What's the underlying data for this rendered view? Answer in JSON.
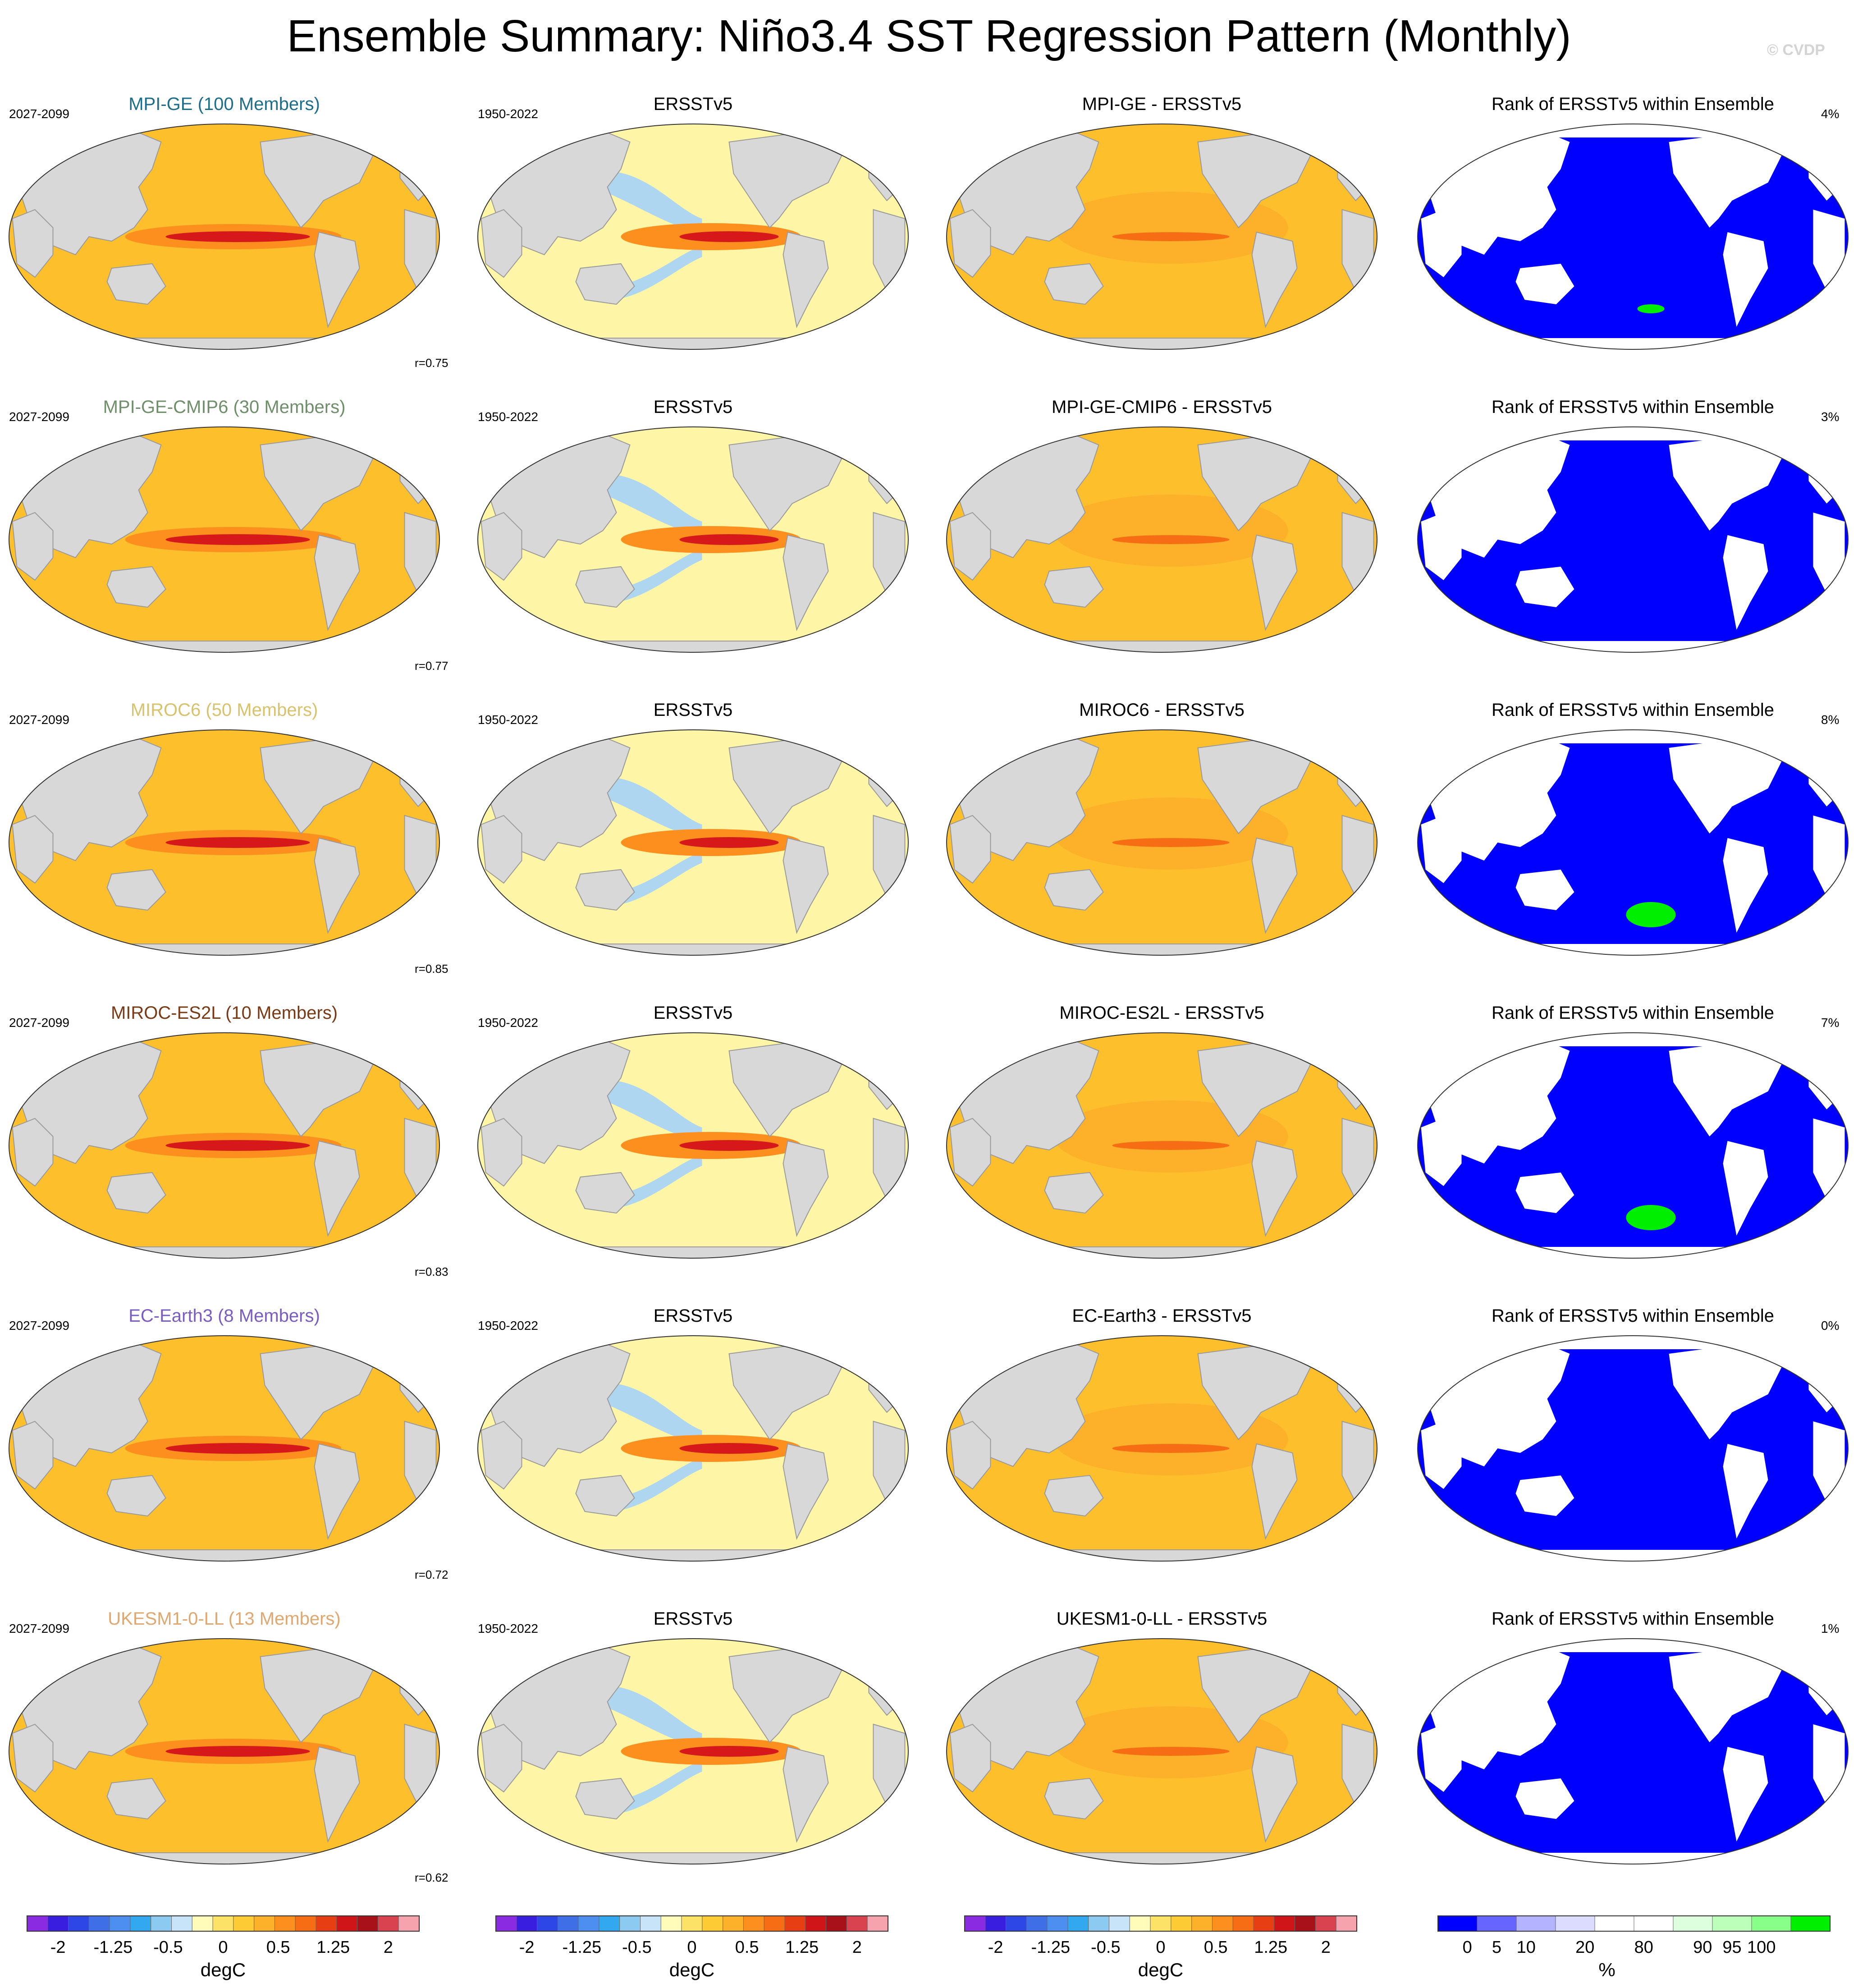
{
  "title": "Ensemble Summary: Niño3.4 SST Regression Pattern (Monthly)",
  "copyright": "© CVDP",
  "colors": {
    "land": "#d8d8d8",
    "ocean_warm": "#fdbf2c",
    "ocean_hot": "#d7181b",
    "ocean_cool": "#aed6f1",
    "ocean_pale": "#fff5a6",
    "rank_low": "#0000ff",
    "rank_mid": "#ffffff",
    "rank_high": "#00ee00"
  },
  "rows": [
    {
      "model_title": "MPI-GE (100 Members)",
      "model_color": "#1d6e8a",
      "model_period": "2027-2099",
      "correlation": "r=0.75",
      "obs_title": "ERSSTv5",
      "obs_period": "1950-2022",
      "diff_title": "MPI-GE - ERSSTv5",
      "rank_title": "Rank of ERSSTv5 within Ensemble",
      "rank_pct": "4%"
    },
    {
      "model_title": "MPI-GE-CMIP6 (30 Members)",
      "model_color": "#6f8f6a",
      "model_period": "2027-2099",
      "correlation": "r=0.77",
      "obs_title": "ERSSTv5",
      "obs_period": "1950-2022",
      "diff_title": "MPI-GE-CMIP6 - ERSSTv5",
      "rank_title": "Rank of ERSSTv5 within Ensemble",
      "rank_pct": "3%"
    },
    {
      "model_title": "MIROC6 (50 Members)",
      "model_color": "#d8c36c",
      "model_period": "2027-2099",
      "correlation": "r=0.85",
      "obs_title": "ERSSTv5",
      "obs_period": "1950-2022",
      "diff_title": "MIROC6 - ERSSTv5",
      "rank_title": "Rank of ERSSTv5 within Ensemble",
      "rank_pct": "8%"
    },
    {
      "model_title": "MIROC-ES2L (10 Members)",
      "model_color": "#7a3a16",
      "model_period": "2027-2099",
      "correlation": "r=0.83",
      "obs_title": "ERSSTv5",
      "obs_period": "1950-2022",
      "diff_title": "MIROC-ES2L - ERSSTv5",
      "rank_title": "Rank of ERSSTv5 within Ensemble",
      "rank_pct": "7%"
    },
    {
      "model_title": "EC-Earth3 (8 Members)",
      "model_color": "#7a5cc2",
      "model_period": "2027-2099",
      "correlation": "r=0.72",
      "obs_title": "ERSSTv5",
      "obs_period": "1950-2022",
      "diff_title": "EC-Earth3 - ERSSTv5",
      "rank_title": "Rank of ERSSTv5 within Ensemble",
      "rank_pct": "0%"
    },
    {
      "model_title": "UKESM1-0-LL (13 Members)",
      "model_color": "#e0a870",
      "model_period": "2027-2099",
      "correlation": "r=0.62",
      "obs_title": "ERSSTv5",
      "obs_period": "1950-2022",
      "diff_title": "UKESM1-0-LL - ERSSTv5",
      "rank_title": "Rank of ERSSTv5 within Ensemble",
      "rank_pct": "1%"
    }
  ],
  "colorbars": {
    "sst": {
      "unit": "degC",
      "colors": [
        "#8a2be2",
        "#3a1ee0",
        "#2d46e6",
        "#3f6fe6",
        "#4d8ff0",
        "#31a8f0",
        "#8ccaf2",
        "#c7e4f8",
        "#fffbb8",
        "#fde268",
        "#fdcb33",
        "#fdb02a",
        "#fd8f1f",
        "#f76d14",
        "#e83e13",
        "#cf1518",
        "#a8101a",
        "#d9424f",
        "#f7a3ad"
      ],
      "labels": [
        "-2",
        "-1.25",
        "-0.5",
        "0",
        "0.5",
        "1.25",
        "2"
      ]
    },
    "rank": {
      "unit": "%",
      "colors": [
        "#0000ff",
        "#6666ff",
        "#b3b3ff",
        "#dcdcff",
        "#ffffff",
        "#ffffff",
        "#ddffdd",
        "#bbffbb",
        "#88ff88",
        "#00ee00"
      ],
      "labels": [
        "0",
        "5",
        "10",
        "20",
        "80",
        "90",
        "95",
        "100"
      ]
    }
  }
}
